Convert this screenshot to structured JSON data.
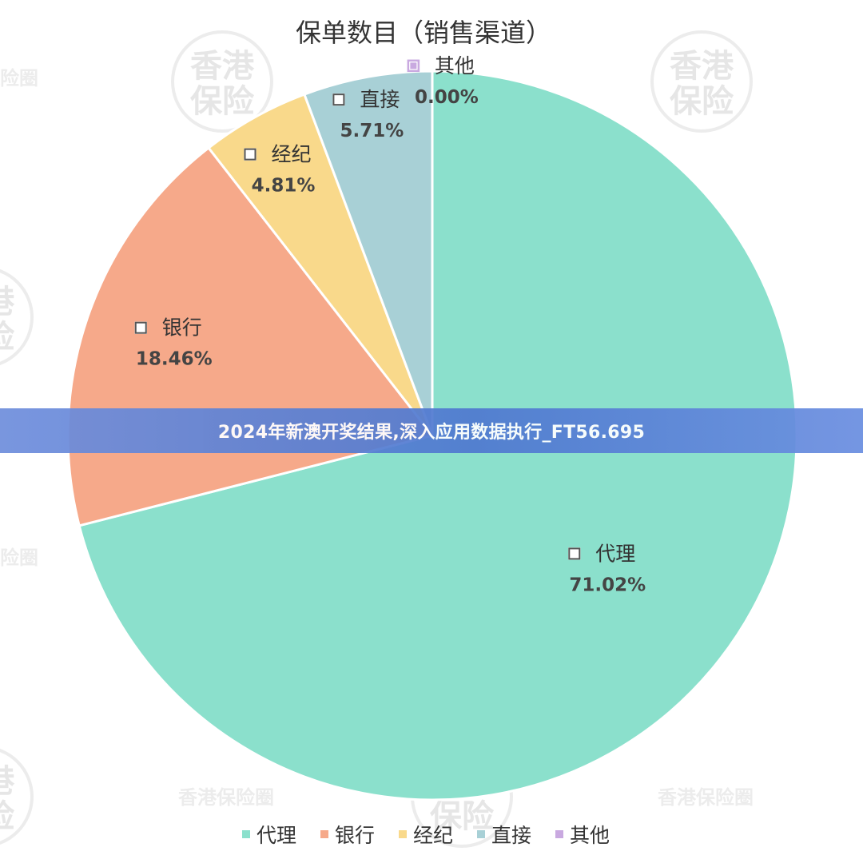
{
  "banner": {
    "text": "2024年新澳开奖结果,深入应用数据执行_FT56.695"
  },
  "watermark": {
    "logo_top": "香港",
    "logo_bottom": "保险",
    "name": "香港保险圈"
  },
  "colors": {
    "代理": "#8be0cc",
    "银行": "#f6a98a",
    "经纪": "#f9d98b",
    "直接": "#a8d0d6",
    "其他": "#c9a9e0"
  },
  "chart_data": {
    "type": "pie",
    "title": "保单数目（销售渠道）",
    "slices": [
      {
        "label": "代理",
        "value": 71.02,
        "value_label": "71.02%"
      },
      {
        "label": "银行",
        "value": 18.46,
        "value_label": "18.46%"
      },
      {
        "label": "经纪",
        "value": 4.81,
        "value_label": "4.81%"
      },
      {
        "label": "直接",
        "value": 5.71,
        "value_label": "5.71%"
      },
      {
        "label": "其他",
        "value": 0.0,
        "value_label": "0.00%"
      }
    ],
    "legend": {
      "position": "bottom",
      "entries": [
        "代理",
        "银行",
        "经纪",
        "直接",
        "其他"
      ]
    }
  }
}
